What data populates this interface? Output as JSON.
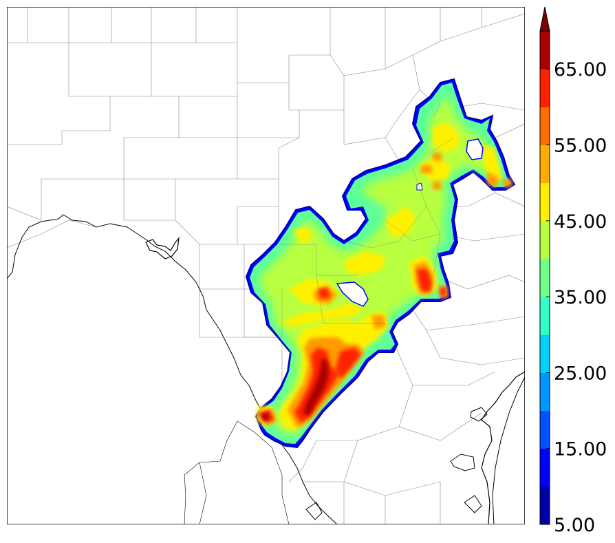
{
  "colorbar": {
    "ticks": [
      "5.00",
      "15.00",
      "25.00",
      "35.00",
      "45.00",
      "55.00",
      "65.00"
    ],
    "extend": "max",
    "levels": [
      5,
      10,
      15,
      20,
      25,
      30,
      35,
      40,
      45,
      50,
      55,
      60,
      65,
      70
    ],
    "colors": [
      "#0000aa",
      "#0000ff",
      "#0050ff",
      "#0096ff",
      "#00d2ff",
      "#30ffc8",
      "#70ff88",
      "#b8ff40",
      "#fff000",
      "#ffae00",
      "#ff6c00",
      "#ff2000",
      "#aa0000"
    ],
    "extend_color": "#7f0000"
  },
  "map": {
    "background": "#ffffff",
    "county_line_color": "#888888",
    "boundary_color": "#000000"
  }
}
